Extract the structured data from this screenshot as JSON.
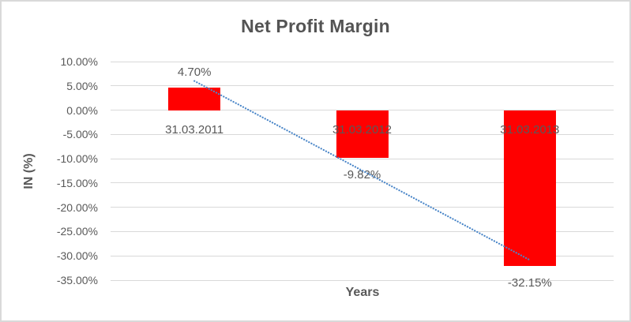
{
  "chart_data": {
    "type": "bar",
    "title": "Net Profit Margin",
    "xlabel": "Years",
    "ylabel": "IN (%)",
    "categories": [
      "31.03.2011",
      "31.03.2012",
      "31.03.2013"
    ],
    "values": [
      4.7,
      -9.82,
      -32.15
    ],
    "data_labels": [
      "4.70%",
      "-9.82%",
      "-32.15%"
    ],
    "ylim": [
      -35,
      10
    ],
    "ytick_step": 5,
    "yticks": [
      {
        "v": 10,
        "label": "10.00%"
      },
      {
        "v": 5,
        "label": "5.00%"
      },
      {
        "v": 0,
        "label": "0.00%"
      },
      {
        "v": -5,
        "label": "-5.00%"
      },
      {
        "v": -10,
        "label": "-10.00%"
      },
      {
        "v": -15,
        "label": "-15.00%"
      },
      {
        "v": -20,
        "label": "-20.00%"
      },
      {
        "v": -25,
        "label": "-25.00%"
      },
      {
        "v": -30,
        "label": "-30.00%"
      },
      {
        "v": -35,
        "label": "-35.00%"
      }
    ],
    "grid": true,
    "legend": "none",
    "trendline": {
      "type": "linear",
      "style": "dotted",
      "color": "#4A86C8"
    },
    "colors": {
      "bar": "#FF0000",
      "gridline": "#D9D9D9",
      "border": "#D9D9D9",
      "text": "#595959",
      "title_text": "#545454",
      "background": "#FFFFFF"
    }
  }
}
